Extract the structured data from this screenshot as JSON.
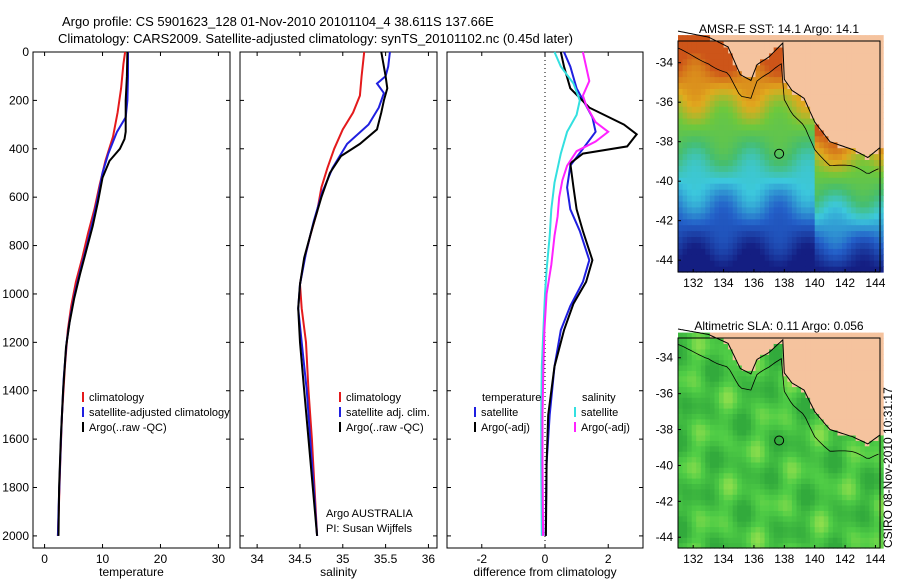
{
  "header": {
    "line1": "Argo profile: CS 5901623_128 01-Nov-2010 20101104_4 38.611S 137.66E",
    "line2": "Climatology: CARS2009. Satellite-adjusted climatology: synTS_20101102.nc (0.45d later)"
  },
  "colors": {
    "climatology": "#e41a1c",
    "satellite": "#1f1fe0",
    "argo": "#000000",
    "sat_salinity": "#33e0e0",
    "argo_salinity": "#ff22ff"
  },
  "chart_data": [
    {
      "type": "line",
      "id": "temperature",
      "xlabel": "temperature",
      "xlim": [
        -2,
        32
      ],
      "ylim": [
        2050,
        0
      ],
      "xticks": [
        0,
        10,
        20,
        30
      ],
      "yticks": [
        0,
        200,
        400,
        600,
        800,
        1000,
        1200,
        1400,
        1600,
        1800,
        2000
      ],
      "legend": {
        "placement": "lower-right",
        "entries": [
          "climatology",
          "satellite-adjusted climatology",
          "Argo(..raw -QC)"
        ]
      },
      "series": [
        {
          "name": "climatology",
          "color_key": "climatology",
          "points": [
            [
              13.9,
              0
            ],
            [
              13.6,
              50
            ],
            [
              13.2,
              150
            ],
            [
              12.6,
              250
            ],
            [
              11.8,
              350
            ],
            [
              10.5,
              450
            ],
            [
              9.5,
              550
            ],
            [
              8.6,
              650
            ],
            [
              7.5,
              750
            ],
            [
              6.5,
              850
            ],
            [
              5.4,
              950
            ],
            [
              4.6,
              1050
            ],
            [
              4.0,
              1150
            ],
            [
              3.5,
              1300
            ],
            [
              3.0,
              1500
            ],
            [
              2.7,
              1700
            ],
            [
              2.5,
              1850
            ],
            [
              2.3,
              2000
            ]
          ]
        },
        {
          "name": "satellite-adjusted climatology",
          "color_key": "satellite",
          "points": [
            [
              14.4,
              0
            ],
            [
              14.4,
              100
            ],
            [
              14.3,
              200
            ],
            [
              14.0,
              270
            ],
            [
              12.5,
              330
            ],
            [
              11.0,
              420
            ],
            [
              10.0,
              500
            ],
            [
              9.2,
              600
            ],
            [
              8.3,
              700
            ],
            [
              7.3,
              800
            ],
            [
              6.2,
              900
            ],
            [
              5.2,
              1000
            ],
            [
              4.4,
              1100
            ],
            [
              3.8,
              1200
            ],
            [
              3.3,
              1350
            ],
            [
              2.9,
              1550
            ],
            [
              2.6,
              1750
            ],
            [
              2.4,
              1900
            ],
            [
              2.3,
              2000
            ]
          ]
        },
        {
          "name": "Argo(..raw -QC)",
          "color_key": "argo",
          "points": [
            [
              14.3,
              0
            ],
            [
              14.2,
              100
            ],
            [
              14.0,
              200
            ],
            [
              14.0,
              330
            ],
            [
              13.8,
              360
            ],
            [
              13.0,
              400
            ],
            [
              11.2,
              450
            ],
            [
              10.0,
              520
            ],
            [
              9.2,
              620
            ],
            [
              8.3,
              720
            ],
            [
              7.2,
              820
            ],
            [
              6.1,
              920
            ],
            [
              5.1,
              1020
            ],
            [
              4.3,
              1120
            ],
            [
              3.7,
              1220
            ],
            [
              3.2,
              1400
            ],
            [
              2.8,
              1600
            ],
            [
              2.5,
              1800
            ],
            [
              2.4,
              2000
            ]
          ]
        }
      ]
    },
    {
      "type": "line",
      "id": "salinity",
      "xlabel": "salinity",
      "xlim": [
        33.8,
        36.1
      ],
      "ylim": [
        2050,
        0
      ],
      "xticks": [
        34,
        34.5,
        35,
        35.5,
        36
      ],
      "legend": {
        "placement": "lower-right",
        "entries": [
          "climatology",
          "satellite adj. clim.",
          "Argo(..raw -QC)"
        ]
      },
      "annotation": {
        "line1": "Argo AUSTRALIA",
        "line2": "PI: Susan Wijffels"
      },
      "series": [
        {
          "name": "climatology",
          "color_key": "climatology",
          "points": [
            [
              35.25,
              0
            ],
            [
              35.22,
              100
            ],
            [
              35.2,
              180
            ],
            [
              35.12,
              250
            ],
            [
              35.0,
              320
            ],
            [
              34.9,
              400
            ],
            [
              34.82,
              480
            ],
            [
              34.75,
              560
            ],
            [
              34.7,
              660
            ],
            [
              34.62,
              760
            ],
            [
              34.55,
              860
            ],
            [
              34.5,
              960
            ],
            [
              34.52,
              1060
            ],
            [
              34.57,
              1200
            ],
            [
              34.6,
              1400
            ],
            [
              34.64,
              1600
            ],
            [
              34.67,
              1800
            ],
            [
              34.7,
              2000
            ]
          ]
        },
        {
          "name": "satellite adj. clim.",
          "color_key": "satellite",
          "points": [
            [
              35.55,
              0
            ],
            [
              35.53,
              60
            ],
            [
              35.5,
              100
            ],
            [
              35.4,
              130
            ],
            [
              35.48,
              170
            ],
            [
              35.42,
              230
            ],
            [
              35.3,
              300
            ],
            [
              35.05,
              380
            ],
            [
              34.88,
              480
            ],
            [
              34.76,
              580
            ],
            [
              34.66,
              700
            ],
            [
              34.57,
              830
            ],
            [
              34.5,
              960
            ],
            [
              34.48,
              1060
            ],
            [
              34.52,
              1200
            ],
            [
              34.58,
              1400
            ],
            [
              34.62,
              1600
            ],
            [
              34.66,
              1800
            ],
            [
              34.7,
              2000
            ]
          ]
        },
        {
          "name": "Argo(..raw -QC)",
          "color_key": "argo",
          "points": [
            [
              35.45,
              0
            ],
            [
              35.5,
              100
            ],
            [
              35.52,
              150
            ],
            [
              35.48,
              200
            ],
            [
              35.45,
              250
            ],
            [
              35.4,
              320
            ],
            [
              35.2,
              380
            ],
            [
              34.98,
              430
            ],
            [
              34.85,
              500
            ],
            [
              34.75,
              600
            ],
            [
              34.65,
              720
            ],
            [
              34.55,
              850
            ],
            [
              34.5,
              960
            ],
            [
              34.48,
              1060
            ],
            [
              34.5,
              1200
            ],
            [
              34.55,
              1400
            ],
            [
              34.6,
              1600
            ],
            [
              34.65,
              1800
            ],
            [
              34.7,
              2000
            ]
          ]
        }
      ]
    },
    {
      "type": "line",
      "id": "difference",
      "xlabel": "difference from climatology",
      "xlim": [
        -3.1,
        3.1
      ],
      "ylim": [
        2050,
        0
      ],
      "xticks": [
        -2,
        0,
        2
      ],
      "zero_line": 0,
      "legend": {
        "placement": "lower-left",
        "temperature_title": "temperature",
        "salinity_title": "salinity",
        "temperature_entries": [
          "satellite",
          "Argo(-adj)"
        ],
        "salinity_entries": [
          "satellite",
          "Argo(-adj)"
        ]
      },
      "series": [
        {
          "name": "temperature satellite",
          "color_key": "satellite",
          "points": [
            [
              0.6,
              0
            ],
            [
              0.8,
              60
            ],
            [
              1.0,
              150
            ],
            [
              1.5,
              270
            ],
            [
              1.6,
              330
            ],
            [
              1.2,
              400
            ],
            [
              0.8,
              470
            ],
            [
              0.7,
              560
            ],
            [
              0.8,
              650
            ],
            [
              1.1,
              740
            ],
            [
              1.4,
              860
            ],
            [
              1.2,
              950
            ],
            [
              0.8,
              1050
            ],
            [
              0.5,
              1150
            ],
            [
              0.3,
              1300
            ],
            [
              0.15,
              1500
            ],
            [
              0.05,
              1700
            ],
            [
              0.02,
              2000
            ]
          ]
        },
        {
          "name": "temperature Argo(-adj)",
          "color_key": "argo",
          "points": [
            [
              0.5,
              0
            ],
            [
              0.6,
              60
            ],
            [
              0.8,
              150
            ],
            [
              1.4,
              230
            ],
            [
              2.5,
              300
            ],
            [
              2.9,
              340
            ],
            [
              2.6,
              390
            ],
            [
              1.2,
              420
            ],
            [
              0.8,
              460
            ],
            [
              0.9,
              560
            ],
            [
              1.0,
              650
            ],
            [
              1.2,
              740
            ],
            [
              1.5,
              860
            ],
            [
              1.3,
              950
            ],
            [
              0.9,
              1040
            ],
            [
              0.6,
              1150
            ],
            [
              0.3,
              1300
            ],
            [
              0.1,
              1500
            ],
            [
              0.05,
              1700
            ],
            [
              0.03,
              2000
            ]
          ]
        },
        {
          "name": "salinity satellite",
          "color_key": "sat_salinity",
          "points": [
            [
              0.3,
              0
            ],
            [
              0.5,
              60
            ],
            [
              0.9,
              130
            ],
            [
              1.1,
              200
            ],
            [
              1.0,
              260
            ],
            [
              0.7,
              330
            ],
            [
              0.5,
              420
            ],
            [
              0.3,
              540
            ],
            [
              0.2,
              650
            ],
            [
              0.15,
              760
            ],
            [
              0.05,
              900
            ],
            [
              0.0,
              1000
            ],
            [
              -0.05,
              1150
            ],
            [
              -0.1,
              1300
            ],
            [
              -0.12,
              1500
            ],
            [
              -0.12,
              1700
            ],
            [
              -0.1,
              2000
            ]
          ]
        },
        {
          "name": "salinity Argo(-adj)",
          "color_key": "argo_salinity",
          "points": [
            [
              1.2,
              0
            ],
            [
              1.3,
              60
            ],
            [
              1.4,
              120
            ],
            [
              1.2,
              180
            ],
            [
              1.3,
              220
            ],
            [
              1.6,
              290
            ],
            [
              2.0,
              330
            ],
            [
              1.6,
              370
            ],
            [
              1.0,
              410
            ],
            [
              0.7,
              470
            ],
            [
              0.55,
              530
            ],
            [
              0.45,
              600
            ],
            [
              0.4,
              680
            ],
            [
              0.3,
              760
            ],
            [
              0.2,
              880
            ],
            [
              0.05,
              1000
            ],
            [
              -0.02,
              1150
            ],
            [
              -0.05,
              1300
            ],
            [
              -0.08,
              1500
            ],
            [
              -0.08,
              1700
            ],
            [
              -0.06,
              2000
            ]
          ]
        }
      ]
    },
    {
      "type": "heatmap",
      "id": "sst_map",
      "title": "AMSR-E SST: 14.1 Argo: 14.1",
      "xlim": [
        131,
        144.3
      ],
      "ylim": [
        -44.6,
        -32.9
      ],
      "xticks": [
        132,
        134,
        136,
        138,
        140,
        142,
        144
      ],
      "yticks": [
        -34,
        -36,
        -38,
        -40,
        -42,
        -44
      ],
      "marker": [
        137.66,
        -38.611
      ]
    },
    {
      "type": "heatmap",
      "id": "sla_map",
      "title": "Altimetric SLA: 0.11 Argo: 0.056",
      "xlim": [
        131,
        144.3
      ],
      "ylim": [
        -44.6,
        -32.9
      ],
      "xticks": [
        132,
        134,
        136,
        138,
        140,
        142,
        144
      ],
      "yticks": [
        -34,
        -36,
        -38,
        -40,
        -42,
        -44
      ],
      "marker": [
        137.66,
        -38.611
      ]
    }
  ],
  "footer": {
    "credit": "CSIRO 08-Nov-2010 10:31:17"
  }
}
